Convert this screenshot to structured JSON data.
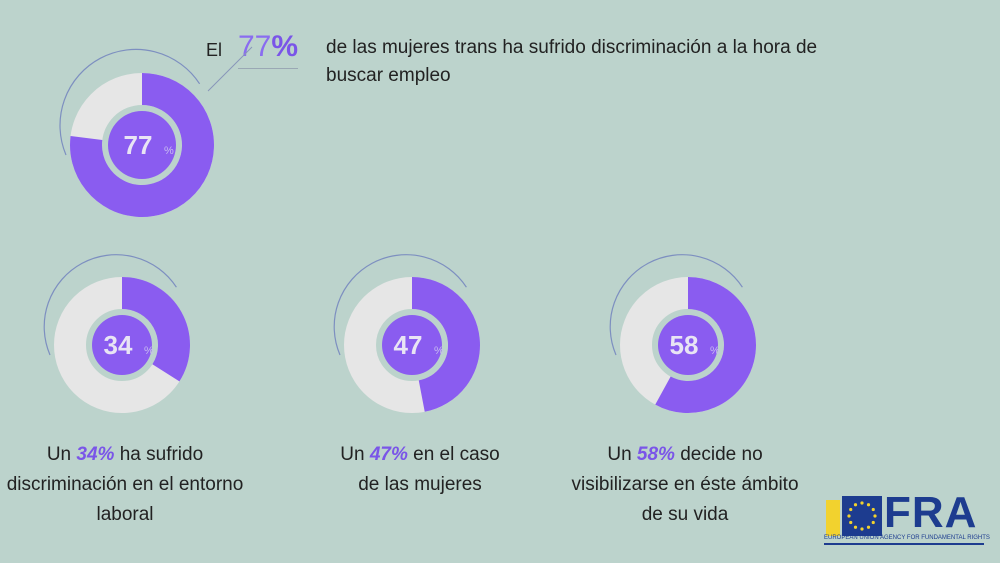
{
  "colors": {
    "accent": "#8a5cf0",
    "track": "#e6e6e6",
    "background": "#bcd3cc"
  },
  "headline": {
    "prefix": "El",
    "pct_num": "77",
    "pct_sign": "%",
    "text": "de las mujeres trans ha sufrido discriminación a la hora de buscar empleo"
  },
  "chart_data": {
    "type": "donut",
    "items": [
      {
        "value": 77,
        "label": "77",
        "unit": "%"
      },
      {
        "value": 34,
        "label": "34",
        "unit": "%"
      },
      {
        "value": 47,
        "label": "47",
        "unit": "%"
      },
      {
        "value": 58,
        "label": "58",
        "unit": "%"
      }
    ]
  },
  "captions": [
    {
      "pre": "Un",
      "pct": "34%",
      "post": "ha sufrido discriminación en el entorno laboral"
    },
    {
      "pre": "Un",
      "pct": "47%",
      "post": "en el caso de las mujeres"
    },
    {
      "pre": "Un",
      "pct": "58%",
      "post": "decide no visibilizarse en éste ámbito de su vida"
    }
  ],
  "logo": {
    "name": "FRA",
    "subtitle": "EUROPEAN UNION AGENCY FOR FUNDAMENTAL RIGHTS"
  }
}
